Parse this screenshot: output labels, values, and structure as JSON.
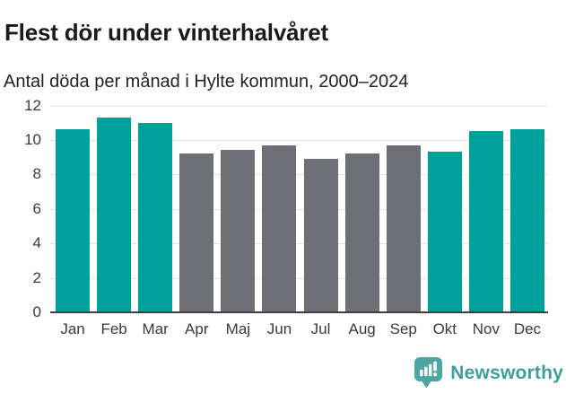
{
  "chart_data": {
    "type": "bar",
    "title": "Flest dör under vinterhalvåret",
    "subtitle": "Antal döda per månad i Hylte kommun, 2000–2024",
    "categories": [
      "Jan",
      "Feb",
      "Mar",
      "Apr",
      "Maj",
      "Jun",
      "Jul",
      "Aug",
      "Sep",
      "Okt",
      "Nov",
      "Dec"
    ],
    "values": [
      10.6,
      11.3,
      11.0,
      9.2,
      9.4,
      9.7,
      8.9,
      9.2,
      9.7,
      9.3,
      10.5,
      10.6
    ],
    "bar_colors": [
      "highlight",
      "highlight",
      "highlight",
      "base",
      "base",
      "base",
      "base",
      "base",
      "base",
      "highlight",
      "highlight",
      "highlight"
    ],
    "highlighted_months": [
      "Jan",
      "Feb",
      "Mar",
      "Okt",
      "Nov",
      "Dec"
    ],
    "xlabel": "",
    "ylabel": "",
    "ylim": [
      0,
      12
    ],
    "yticks": [
      0,
      2,
      4,
      6,
      8,
      10,
      12
    ],
    "grid": true,
    "legend_position": "none",
    "colors": {
      "highlight": "#00a09b",
      "base": "#6e6e76",
      "axis_line": "#3f3f3f",
      "gridline": "#e3e3e3",
      "tick_text": "#3a3a3a"
    }
  },
  "branding": {
    "name": "Newsworthy",
    "icon": "newsworthy-bubble-barchart-icon",
    "color": "#3f9e9a"
  }
}
